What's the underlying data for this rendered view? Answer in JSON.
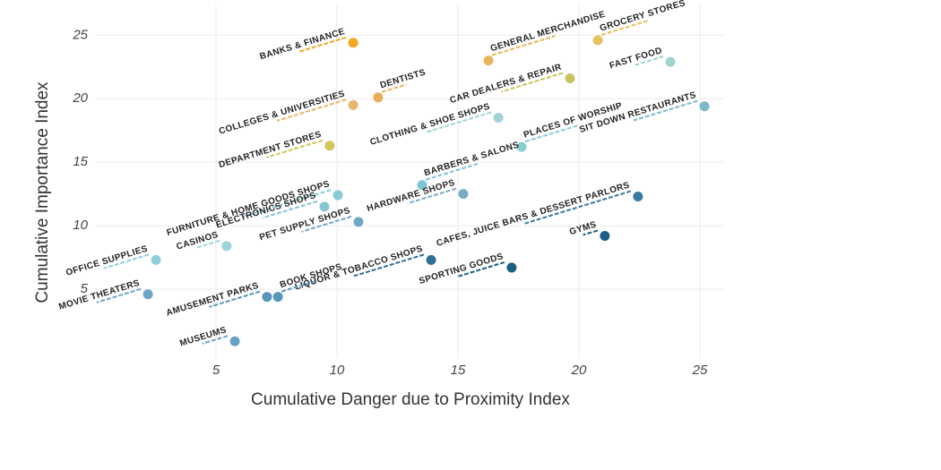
{
  "chart_data": {
    "type": "scatter",
    "x_label": "Cumulative Danger due to Proximity Index",
    "y_label": "Cumulative Importance Index",
    "xlim": [
      0,
      26
    ],
    "ylim": [
      0,
      26.5
    ],
    "xticks": [
      5,
      10,
      15,
      20,
      25
    ],
    "yticks": [
      5,
      10,
      15,
      20,
      25
    ],
    "grid": true,
    "points": [
      {
        "name": "BANKS & FINANCE",
        "x": 10.67,
        "y": 24.4,
        "color": "#f5a623"
      },
      {
        "name": "GENERAL MERCHANDISE",
        "x": 16.26,
        "y": 23.0,
        "color": "#e8b55e"
      },
      {
        "name": "GROCERY STORES",
        "x": 20.78,
        "y": 24.6,
        "color": "#e8c25e"
      },
      {
        "name": "FAST FOOD",
        "x": 23.78,
        "y": 22.9,
        "color": "#9fd3cf"
      },
      {
        "name": "DENTISTS",
        "x": 11.7,
        "y": 20.1,
        "color": "#e8b05e"
      },
      {
        "name": "COLLEGES & UNIVERSITIES",
        "x": 10.67,
        "y": 19.5,
        "color": "#e8b66e"
      },
      {
        "name": "CAR DEALERS & REPAIR",
        "x": 19.63,
        "y": 21.6,
        "color": "#c8c45e"
      },
      {
        "name": "CLOTHING & SHOE SHOPS",
        "x": 16.67,
        "y": 18.5,
        "color": "#9fd3d8"
      },
      {
        "name": "SIT DOWN RESTAURANTS",
        "x": 25.19,
        "y": 19.4,
        "color": "#7bb8cc"
      },
      {
        "name": "DEPARTMENT STORES",
        "x": 9.7,
        "y": 16.3,
        "color": "#d4c45a"
      },
      {
        "name": "PLACES OF WORSHIP",
        "x": 17.63,
        "y": 16.2,
        "color": "#88ccd4"
      },
      {
        "name": "FURNITURE & HOME GOODS SHOPS",
        "x": 10.04,
        "y": 12.4,
        "color": "#88ccd6"
      },
      {
        "name": "BARBERS & SALONS",
        "x": 13.52,
        "y": 13.2,
        "color": "#7fc4d4"
      },
      {
        "name": "ELECTRONICS SHOPS",
        "x": 9.48,
        "y": 11.5,
        "color": "#88c4d4"
      },
      {
        "name": "HARDWARE SHOPS",
        "x": 15.22,
        "y": 12.5,
        "color": "#7aacc4"
      },
      {
        "name": "PET SUPPLY SHOPS",
        "x": 10.89,
        "y": 10.3,
        "color": "#6fa8c4"
      },
      {
        "name": "CAFES, JUICE BARS & DESSERT PARLORS",
        "x": 22.44,
        "y": 12.3,
        "color": "#3a7aa0"
      },
      {
        "name": "GYMS",
        "x": 21.07,
        "y": 9.2,
        "color": "#1a5f84"
      },
      {
        "name": "CASINOS",
        "x": 5.44,
        "y": 8.4,
        "color": "#9fd3dc"
      },
      {
        "name": "OFFICE SUPPLIES",
        "x": 2.52,
        "y": 7.3,
        "color": "#8fcfdc"
      },
      {
        "name": "MOVIE THEATERS",
        "x": 2.19,
        "y": 4.6,
        "color": "#6fa6c4"
      },
      {
        "name": "LIQUOR & TOBACCO SHOPS",
        "x": 13.89,
        "y": 7.3,
        "color": "#2f6f94"
      },
      {
        "name": "SPORTING GOODS",
        "x": 17.22,
        "y": 6.7,
        "color": "#1a5f84"
      },
      {
        "name": "AMUSEMENT PARKS",
        "x": 7.11,
        "y": 4.4,
        "color": "#5a96b8"
      },
      {
        "name": "BOOK SHOPS",
        "x": 7.56,
        "y": 4.4,
        "color": "#5a96b8"
      },
      {
        "name": "MUSEUMS",
        "x": 5.78,
        "y": 0.9,
        "color": "#6aa2c4"
      }
    ]
  }
}
